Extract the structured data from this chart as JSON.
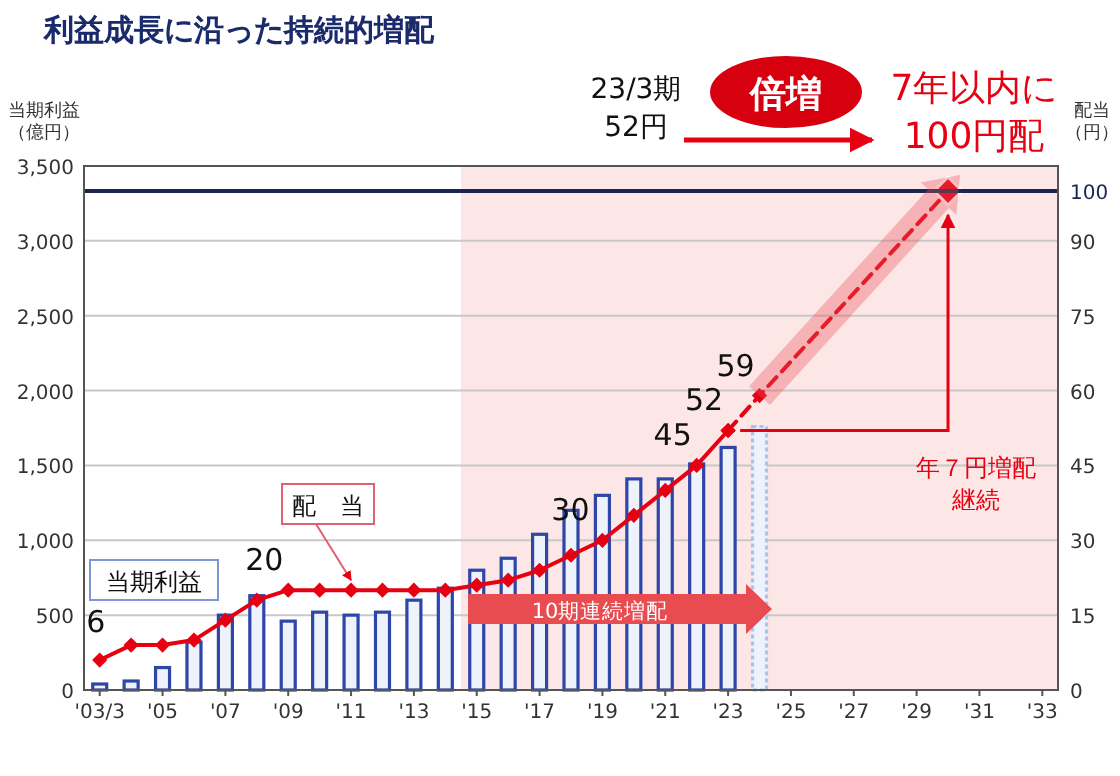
{
  "chart_data": {
    "type": "bar",
    "title": "利益成長に沿った持続的増配",
    "ylabel": "当期利益（億円）",
    "y2label": "配当（円）",
    "x": [
      2003,
      2004,
      2005,
      2006,
      2007,
      2008,
      2009,
      2010,
      2011,
      2012,
      2013,
      2014,
      2015,
      2016,
      2017,
      2018,
      2019,
      2020,
      2021,
      2022,
      2023,
      2024
    ],
    "xlim": [
      2002.5,
      2033.5
    ],
    "xticks": [
      {
        "value": 2003,
        "label": "'03/3"
      },
      {
        "value": 2005,
        "label": "'05"
      },
      {
        "value": 2007,
        "label": "'07"
      },
      {
        "value": 2009,
        "label": "'09"
      },
      {
        "value": 2011,
        "label": "'11"
      },
      {
        "value": 2013,
        "label": "'13"
      },
      {
        "value": 2015,
        "label": "'15"
      },
      {
        "value": 2017,
        "label": "'17"
      },
      {
        "value": 2019,
        "label": "'19"
      },
      {
        "value": 2021,
        "label": "'21"
      },
      {
        "value": 2023,
        "label": "'23"
      },
      {
        "value": 2025,
        "label": "'25"
      },
      {
        "value": 2027,
        "label": "'27"
      },
      {
        "value": 2029,
        "label": "'29"
      },
      {
        "value": 2031,
        "label": "'31"
      },
      {
        "value": 2033,
        "label": "'33"
      }
    ],
    "ylim": [
      0,
      3500
    ],
    "yticks": [
      0,
      500,
      {
        "value": 1000,
        "label": "1,000"
      },
      {
        "value": 1500,
        "label": "1,500"
      },
      {
        "value": 2000,
        "label": "2,000"
      },
      {
        "value": 2500,
        "label": "2,500"
      },
      {
        "value": 3000,
        "label": "3,000"
      },
      {
        "value": 3500,
        "label": "3,500"
      }
    ],
    "y2lim": [
      0,
      105
    ],
    "y2ticks": [
      0,
      15,
      30,
      45,
      60,
      75,
      90,
      100
    ],
    "grid": "y",
    "legend": false,
    "series": [
      {
        "name": "当期利益",
        "values": [
          40,
          60,
          150,
          320,
          500,
          630,
          460,
          520,
          500,
          520,
          600,
          680,
          800,
          880,
          1040,
          1200,
          1300,
          1410,
          1410,
          1510,
          1620,
          1760
        ],
        "colors": [
          "#2e46a8",
          "#2e46a8",
          "#2e46a8",
          "#2e46a8",
          "#2e46a8",
          "#2e46a8",
          "#2e46a8",
          "#2e46a8",
          "#2e46a8",
          "#2e46a8",
          "#2e46a8",
          "#2e46a8",
          "#2e46a8",
          "#2e46a8",
          "#2e46a8",
          "#2e46a8",
          "#2e46a8",
          "#2e46a8",
          "#2e46a8",
          "#2e46a8",
          "#2e46a8",
          "#a9c4ec"
        ]
      },
      {
        "name": "配　当",
        "type": "line",
        "axis": "y2",
        "color": "#e60012",
        "marker": "diamond",
        "line_style": "solid",
        "x": [
          2003,
          2004,
          2005,
          2006,
          2007,
          2008,
          2009,
          2010,
          2011,
          2012,
          2013,
          2014,
          2015,
          2016,
          2017,
          2018,
          2019,
          2020,
          2021,
          2022,
          2023
        ],
        "values": [
          6,
          9,
          9,
          10,
          14,
          18,
          20,
          20,
          20,
          20,
          20,
          20,
          21,
          22,
          24,
          27,
          30,
          35,
          40,
          45,
          52
        ],
        "value_labels": [
          "6",
          null,
          null,
          null,
          null,
          null,
          "20",
          null,
          null,
          null,
          null,
          null,
          null,
          null,
          null,
          null,
          "30",
          null,
          null,
          "45",
          "52"
        ]
      },
      {
        "type": "line",
        "axis": "y2",
        "color": "#e60012",
        "marker": "diamond",
        "line_style": "dashed",
        "x": [
          2023,
          2024,
          2030
        ],
        "values": [
          52,
          59,
          100
        ],
        "value_labels": [
          null,
          "59",
          null
        ]
      }
    ],
    "ref_lines": [
      {
        "axis": "y2",
        "value": 100,
        "color": "#1a2550"
      }
    ],
    "bands": [
      {
        "axis": "x",
        "from": 2014.5,
        "to": 2033.5,
        "color": "#fde6e6"
      }
    ],
    "annotations": [
      "23/3期\n52円",
      "倍増",
      "7年以内に\n100円配",
      "年７円増配継続",
      "10期連続増配"
    ]
  }
}
